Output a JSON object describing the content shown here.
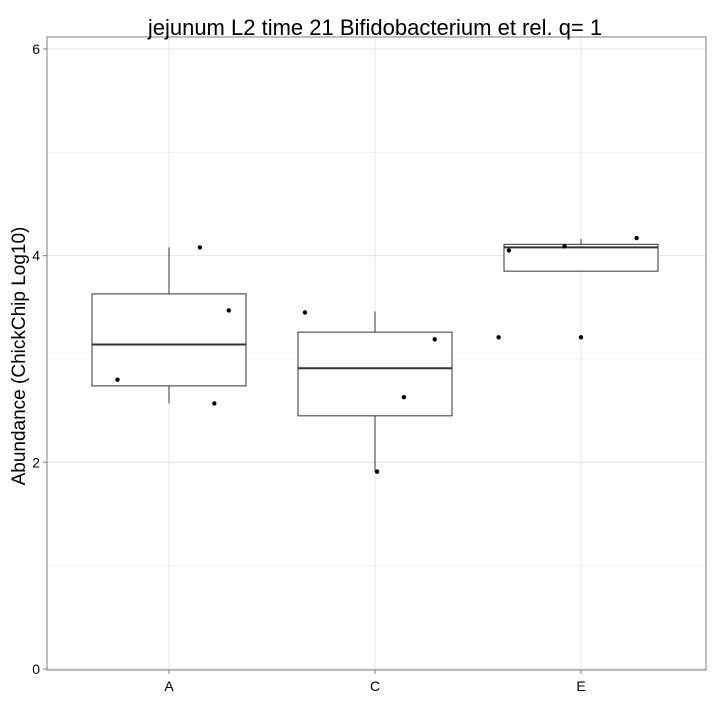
{
  "chart_data": {
    "type": "box",
    "title": "jejunum L2 time 21 Bifidobacterium et rel. q= 1",
    "xlabel": "",
    "ylabel": "Abundance (ChickChip Log10)",
    "ylim": [
      0,
      6
    ],
    "yticks": [
      "0",
      "2",
      "4",
      "6"
    ],
    "grid": true,
    "categories": [
      "A",
      "C",
      "E"
    ],
    "boxes": [
      {
        "category": "A",
        "whisker_low": 2.57,
        "q1": 2.74,
        "median": 3.14,
        "q3": 3.63,
        "whisker_high": 4.08
      },
      {
        "category": "C",
        "whisker_low": 1.91,
        "q1": 2.45,
        "median": 2.91,
        "q3": 3.26,
        "whisker_high": 3.46
      },
      {
        "category": "E",
        "whisker_low": 3.85,
        "q1": 3.85,
        "median": 4.08,
        "q3": 4.11,
        "whisker_high": 4.16
      }
    ],
    "points": [
      {
        "category": "A",
        "x_offset": -0.25,
        "y": 2.8
      },
      {
        "category": "A",
        "x_offset": 0.15,
        "y": 4.08
      },
      {
        "category": "A",
        "x_offset": 0.22,
        "y": 2.57
      },
      {
        "category": "A",
        "x_offset": 0.29,
        "y": 3.47
      },
      {
        "category": "C",
        "x_offset": -0.34,
        "y": 3.45
      },
      {
        "category": "C",
        "x_offset": 0.01,
        "y": 1.91
      },
      {
        "category": "C",
        "x_offset": 0.14,
        "y": 2.63
      },
      {
        "category": "C",
        "x_offset": 0.29,
        "y": 3.19
      },
      {
        "category": "E",
        "x_offset": -0.4,
        "y": 3.21
      },
      {
        "category": "E",
        "x_offset": -0.35,
        "y": 4.05
      },
      {
        "category": "E",
        "x_offset": -0.08,
        "y": 4.09
      },
      {
        "category": "E",
        "x_offset": 0.0,
        "y": 3.21
      },
      {
        "category": "E",
        "x_offset": 0.27,
        "y": 4.17
      }
    ]
  }
}
